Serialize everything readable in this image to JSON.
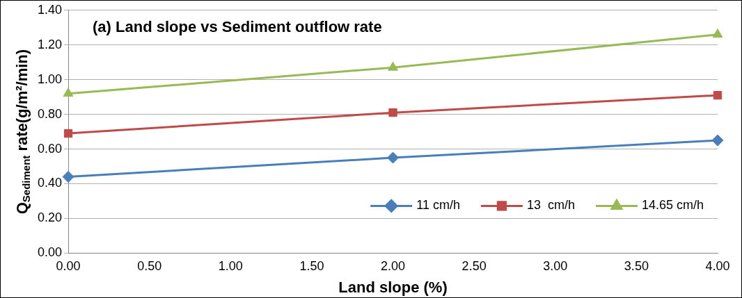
{
  "chart_data": {
    "type": "line",
    "title": "(a) Land slope vs Sediment outflow rate",
    "xlabel": "Land slope (%)",
    "ylabel": "Q$_{Sediment}$ rate(g/m²/min)",
    "x": [
      0,
      2,
      4
    ],
    "series": [
      {
        "name": "11 cm/h",
        "color": "#4a7ebb",
        "marker": "diamond",
        "values": [
          0.44,
          0.55,
          0.65
        ]
      },
      {
        "name": "13  cm/h",
        "color": "#be4b48",
        "marker": "square",
        "values": [
          0.69,
          0.81,
          0.91
        ]
      },
      {
        "name": "14.65 cm/h",
        "color": "#98b954",
        "marker": "triangle",
        "values": [
          0.92,
          1.07,
          1.26
        ]
      }
    ],
    "xlim": [
      0,
      4
    ],
    "xticks": [
      {
        "value": 0,
        "label": "0.00"
      },
      {
        "value": 0.5,
        "label": "0.50"
      },
      {
        "value": 1,
        "label": "1.00"
      },
      {
        "value": 1.5,
        "label": "1.50"
      },
      {
        "value": 2,
        "label": "2.00"
      },
      {
        "value": 2.5,
        "label": "2.50"
      },
      {
        "value": 3,
        "label": "3.00"
      },
      {
        "value": 3.5,
        "label": "3.50"
      },
      {
        "value": 4,
        "label": "4.00"
      }
    ],
    "ylim": [
      0,
      1.4
    ],
    "yticks": [
      {
        "value": 0,
        "label": "0.00"
      },
      {
        "value": 0.2,
        "label": "0.20"
      },
      {
        "value": 0.4,
        "label": "0.40"
      },
      {
        "value": 0.6,
        "label": "0.60"
      },
      {
        "value": 0.8,
        "label": "0.80"
      },
      {
        "value": 1,
        "label": "1.00"
      },
      {
        "value": 1.2,
        "label": "1.20"
      },
      {
        "value": 1.4,
        "label": "1.40"
      }
    ],
    "grid": "y",
    "legend": "bottom right",
    "line_style": "solid"
  }
}
